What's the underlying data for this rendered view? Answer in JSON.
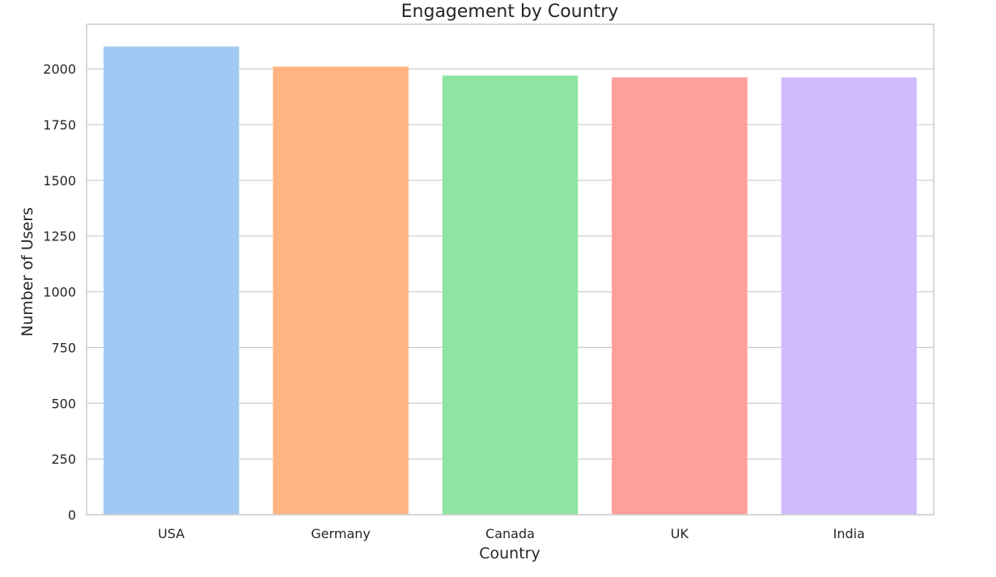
{
  "chart_data": {
    "type": "bar",
    "title": "Engagement by Country",
    "xlabel": "Country",
    "ylabel": "Number of Users",
    "categories": [
      "USA",
      "Germany",
      "Canada",
      "UK",
      "India"
    ],
    "values": [
      2100,
      2010,
      1970,
      1962,
      1962
    ],
    "colors": [
      "#a1c9f4",
      "#ffb482",
      "#8de5a1",
      "#ff9f9b",
      "#d0bbff"
    ],
    "ylim": [
      0,
      2200
    ],
    "yticks": [
      0,
      250,
      500,
      750,
      1000,
      1250,
      1500,
      1750,
      2000
    ],
    "ytick_labels": [
      "0",
      "250",
      "500",
      "750",
      "1000",
      "1250",
      "1500",
      "1750",
      "2000"
    ],
    "grid": true,
    "grid_axis": "y",
    "legend": false
  }
}
